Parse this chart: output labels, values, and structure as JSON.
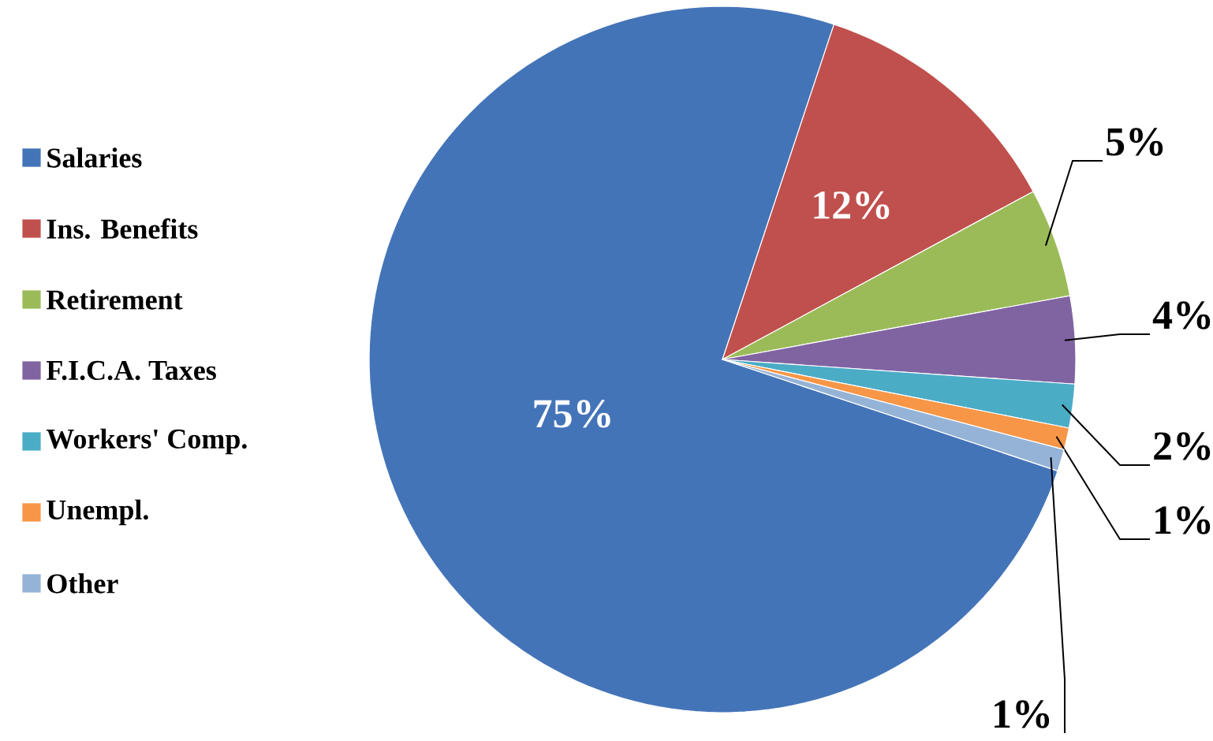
{
  "chart_data": {
    "type": "pie",
    "categories": [
      "Salaries",
      "Ins. Benefits",
      "Retirement",
      "F.I.C.A. Taxes",
      "Workers' Comp.",
      "Unempl.",
      "Other"
    ],
    "values": [
      75,
      12,
      5,
      4,
      2,
      1,
      1
    ],
    "colors": [
      "#4474b8",
      "#c0504d",
      "#9bbb59",
      "#8064a2",
      "#4bacc6",
      "#f79646",
      "#95b3d7"
    ],
    "value_labels": [
      "75%",
      "12%",
      "5%",
      "4%",
      "2%",
      "1%",
      "1%"
    ],
    "legend": "left"
  }
}
